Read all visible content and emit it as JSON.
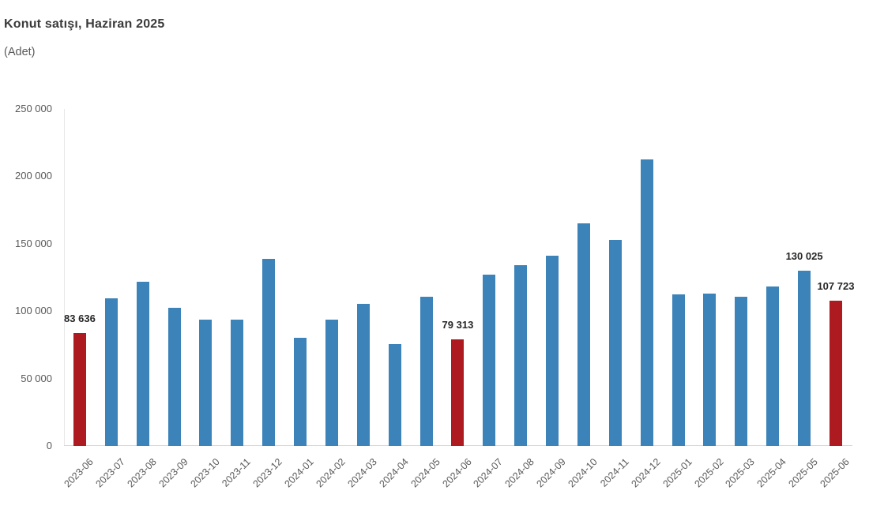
{
  "chart_data": {
    "type": "bar",
    "title": "Konut satışı, Haziran 2025",
    "subtitle": "(Adet)",
    "xlabel": "",
    "ylabel": "",
    "ylim": [
      0,
      250000
    ],
    "grid": false,
    "legend": false,
    "x_tick_rotation": -45,
    "y_ticks": [
      {
        "value": 0,
        "label": "0"
      },
      {
        "value": 50000,
        "label": "50 000"
      },
      {
        "value": 100000,
        "label": "100 000"
      },
      {
        "value": 150000,
        "label": "150 000"
      },
      {
        "value": 200000,
        "label": "200 000"
      },
      {
        "value": 250000,
        "label": "250 000"
      }
    ],
    "points": [
      {
        "category": "2023-06",
        "value": 83636,
        "highlighted": true,
        "label": "83 636"
      },
      {
        "category": "2023-07",
        "value": 109500,
        "highlighted": false,
        "label": ""
      },
      {
        "category": "2023-08",
        "value": 122000,
        "highlighted": false,
        "label": ""
      },
      {
        "category": "2023-09",
        "value": 102600,
        "highlighted": false,
        "label": ""
      },
      {
        "category": "2023-10",
        "value": 93800,
        "highlighted": false,
        "label": ""
      },
      {
        "category": "2023-11",
        "value": 93500,
        "highlighted": false,
        "label": ""
      },
      {
        "category": "2023-12",
        "value": 138600,
        "highlighted": false,
        "label": ""
      },
      {
        "category": "2024-01",
        "value": 80300,
        "highlighted": false,
        "label": ""
      },
      {
        "category": "2024-02",
        "value": 93900,
        "highlighted": false,
        "label": ""
      },
      {
        "category": "2024-03",
        "value": 105500,
        "highlighted": false,
        "label": ""
      },
      {
        "category": "2024-04",
        "value": 75600,
        "highlighted": false,
        "label": ""
      },
      {
        "category": "2024-05",
        "value": 110600,
        "highlighted": false,
        "label": ""
      },
      {
        "category": "2024-06",
        "value": 79313,
        "highlighted": true,
        "label": "79 313"
      },
      {
        "category": "2024-07",
        "value": 127100,
        "highlighted": false,
        "label": ""
      },
      {
        "category": "2024-08",
        "value": 134200,
        "highlighted": false,
        "label": ""
      },
      {
        "category": "2024-09",
        "value": 140900,
        "highlighted": false,
        "label": ""
      },
      {
        "category": "2024-10",
        "value": 165100,
        "highlighted": false,
        "label": ""
      },
      {
        "category": "2024-11",
        "value": 153000,
        "highlighted": false,
        "label": ""
      },
      {
        "category": "2024-12",
        "value": 212600,
        "highlighted": false,
        "label": ""
      },
      {
        "category": "2025-01",
        "value": 112200,
        "highlighted": false,
        "label": ""
      },
      {
        "category": "2025-02",
        "value": 112800,
        "highlighted": false,
        "label": ""
      },
      {
        "category": "2025-03",
        "value": 110800,
        "highlighted": false,
        "label": ""
      },
      {
        "category": "2025-04",
        "value": 118400,
        "highlighted": false,
        "label": ""
      },
      {
        "category": "2025-05",
        "value": 130025,
        "highlighted": false,
        "label": "130 025"
      },
      {
        "category": "2025-06",
        "value": 107723,
        "highlighted": true,
        "label": "107 723"
      }
    ],
    "colors": {
      "bar": "#3b83b9",
      "highlight": "#ad1b20",
      "axis_line": "#d9d9d9",
      "y_axis_line": "#e8e8e8",
      "tick_text": "#595959",
      "data_label_text": "#262626",
      "title_text": "#3a3a3a",
      "background": "#ffffff"
    }
  }
}
